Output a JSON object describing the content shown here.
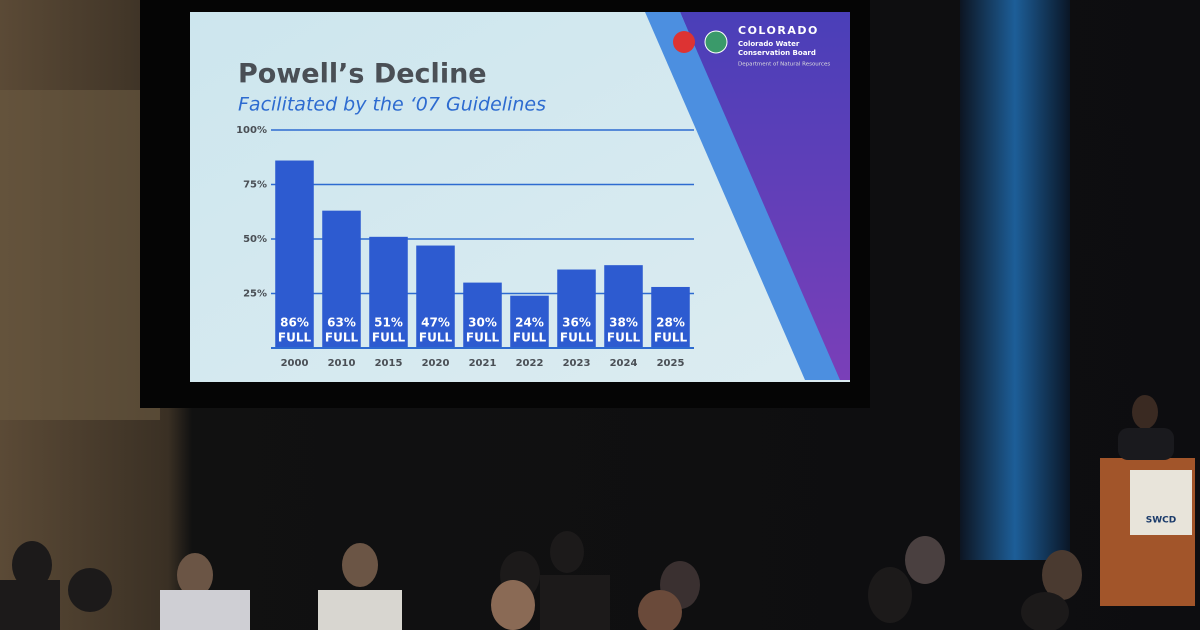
{
  "chart_data": {
    "type": "bar",
    "title": "Powell’s Decline",
    "subtitle": "Facilitated by the ‘07 Guidelines",
    "categories": [
      "2000",
      "2010",
      "2015",
      "2020",
      "2021",
      "2022",
      "2023",
      "2024",
      "2025"
    ],
    "values": [
      86,
      63,
      51,
      47,
      30,
      24,
      36,
      38,
      28
    ],
    "value_labels": [
      "86%",
      "63%",
      "51%",
      "47%",
      "30%",
      "24%",
      "36%",
      "38%",
      "28%"
    ],
    "value_label_unit": "FULL",
    "color": "#2d5bd0",
    "ylim": [
      0,
      100
    ],
    "yticks": [
      {
        "value": 25,
        "label": "25%"
      },
      {
        "value": 50,
        "label": "50%"
      },
      {
        "value": 75,
        "label": "75%"
      },
      {
        "value": 100,
        "label": "100%"
      }
    ],
    "grid": true
  },
  "logo": {
    "name": "COLORADO",
    "line1": "Colorado Water",
    "line2": "Conservation Board",
    "line3": "Department of Natural Resources"
  },
  "podium": {
    "label": "SWCD"
  }
}
